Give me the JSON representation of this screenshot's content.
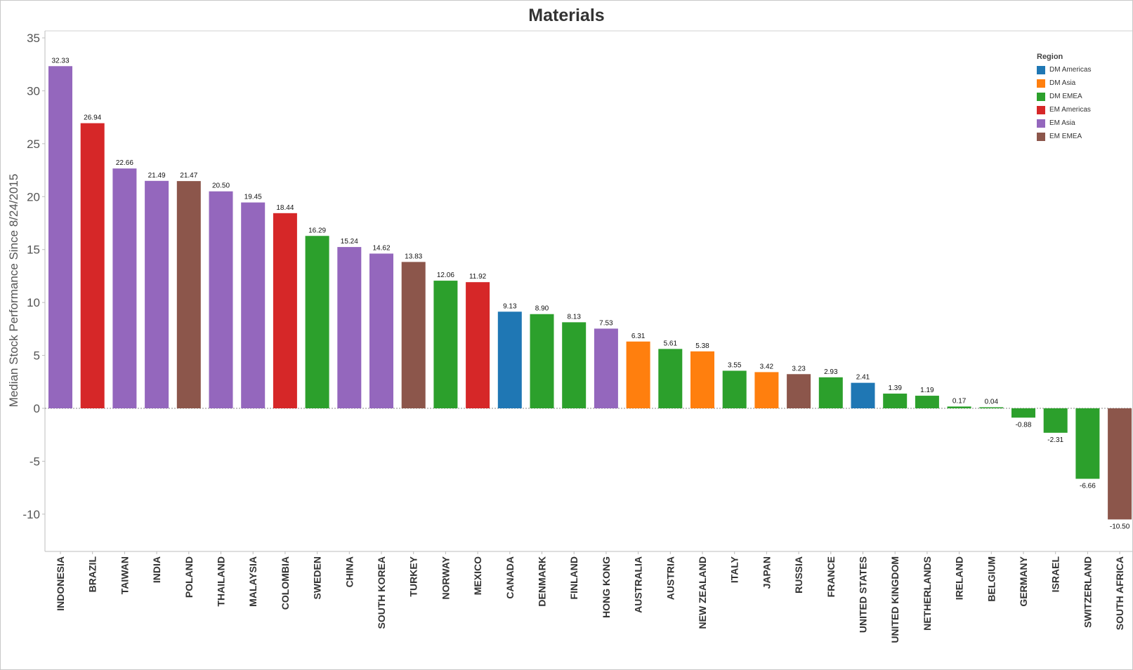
{
  "chart_data": {
    "type": "bar",
    "title": "Materials",
    "xlabel": "",
    "ylabel": "Median Stock Performance Since 8/24/2015",
    "ylim": [
      -13.5,
      35
    ],
    "yticks": [
      35,
      30,
      25,
      20,
      15,
      10,
      5,
      0,
      -5,
      -10
    ],
    "legend_title": "Region",
    "legend_position": "top-right",
    "regions": [
      {
        "name": "DM Americas",
        "color": "#1f77b4"
      },
      {
        "name": "DM Asia",
        "color": "#ff7f0e"
      },
      {
        "name": "DM EMEA",
        "color": "#2ca02c"
      },
      {
        "name": "EM Americas",
        "color": "#d62728"
      },
      {
        "name": "EM Asia",
        "color": "#9467bd"
      },
      {
        "name": "EM EMEA",
        "color": "#8c564b"
      }
    ],
    "categories": [
      "INDONESIA",
      "BRAZIL",
      "TAIWAN",
      "INDIA",
      "POLAND",
      "THAILAND",
      "MALAYSIA",
      "COLOMBIA",
      "SWEDEN",
      "CHINA",
      "SOUTH KOREA",
      "TURKEY",
      "NORWAY",
      "MEXICO",
      "CANADA",
      "DENMARK",
      "FINLAND",
      "HONG KONG",
      "AUSTRALIA",
      "AUSTRIA",
      "NEW ZEALAND",
      "ITALY",
      "JAPAN",
      "RUSSIA",
      "FRANCE",
      "UNITED STATES",
      "UNITED KINGDOM",
      "NETHERLANDS",
      "IRELAND",
      "BELGIUM",
      "GERMANY",
      "ISRAEL",
      "SWITZERLAND",
      "SOUTH AFRICA"
    ],
    "values": [
      32.33,
      26.94,
      22.66,
      21.49,
      21.47,
      20.5,
      19.45,
      18.44,
      16.29,
      15.24,
      14.62,
      13.83,
      12.06,
      11.92,
      9.13,
      8.9,
      8.13,
      7.53,
      6.31,
      5.61,
      5.38,
      3.55,
      3.42,
      3.23,
      2.93,
      2.41,
      1.39,
      1.19,
      0.17,
      0.04,
      -0.88,
      -2.31,
      -6.66,
      -10.5
    ],
    "value_labels": [
      "32.33",
      "26.94",
      "22.66",
      "21.49",
      "21.47",
      "20.50",
      "19.45",
      "18.44",
      "16.29",
      "15.24",
      "14.62",
      "13.83",
      "12.06",
      "11.92",
      "9.13",
      "8.90",
      "8.13",
      "7.53",
      "6.31",
      "5.61",
      "5.38",
      "3.55",
      "3.42",
      "3.23",
      "2.93",
      "2.41",
      "1.39",
      "1.19",
      "0.17",
      "0.04",
      "-0.88",
      "-2.31",
      "-6.66",
      "-10.50"
    ],
    "region_of": [
      "EM Asia",
      "EM Americas",
      "EM Asia",
      "EM Asia",
      "EM EMEA",
      "EM Asia",
      "EM Asia",
      "EM Americas",
      "DM EMEA",
      "EM Asia",
      "EM Asia",
      "EM EMEA",
      "DM EMEA",
      "EM Americas",
      "DM Americas",
      "DM EMEA",
      "DM EMEA",
      "EM Asia",
      "DM Asia",
      "DM EMEA",
      "DM Asia",
      "DM EMEA",
      "DM Asia",
      "EM EMEA",
      "DM EMEA",
      "DM Americas",
      "DM EMEA",
      "DM EMEA",
      "DM EMEA",
      "DM EMEA",
      "DM EMEA",
      "DM EMEA",
      "DM EMEA",
      "EM EMEA"
    ]
  }
}
